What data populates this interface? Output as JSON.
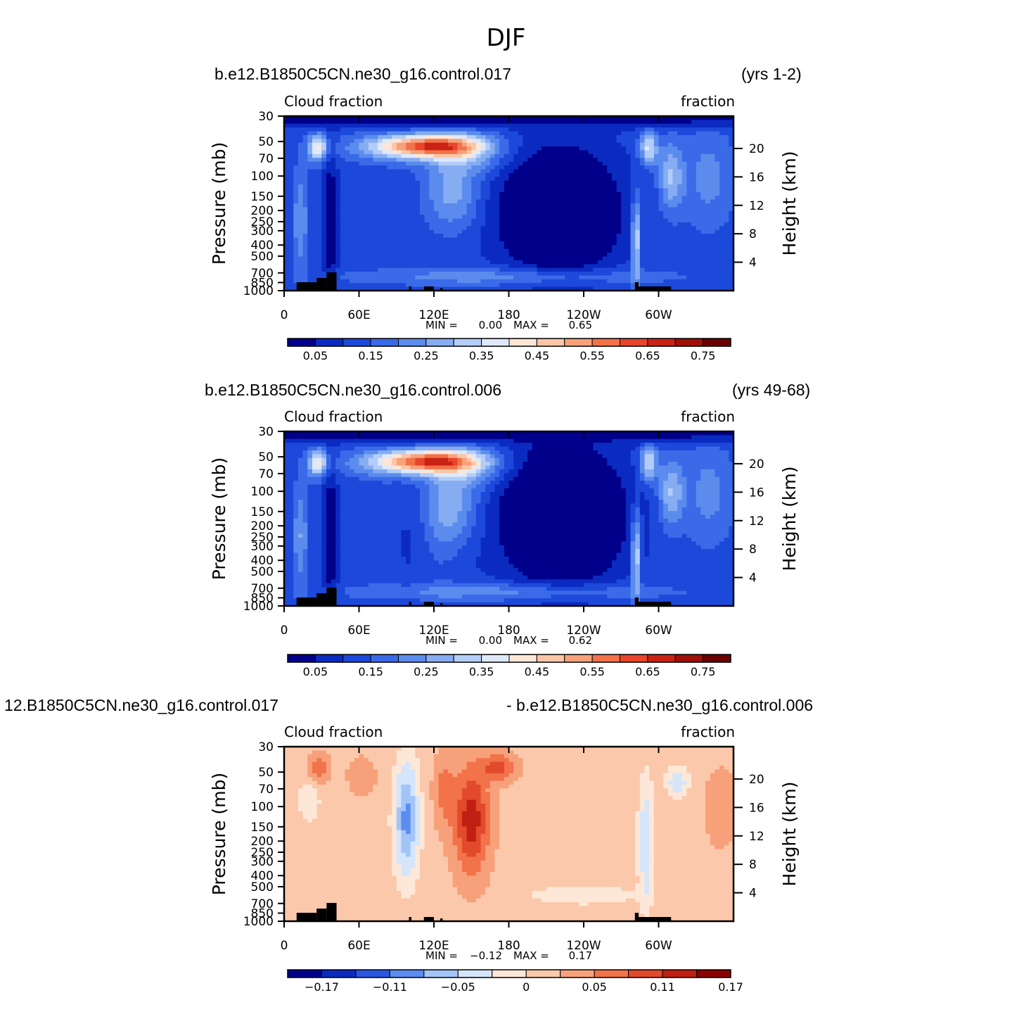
{
  "page": {
    "title": "DJF"
  },
  "palette": {
    "cloud": [
      "#00008b",
      "#0b2bc0",
      "#1d49da",
      "#3a6ae8",
      "#5b8ced",
      "#86acf2",
      "#b3cdf8",
      "#dde9fb",
      "#fde6d6",
      "#fbc6a6",
      "#f7a17b",
      "#f2724a",
      "#e8452a",
      "#c92315",
      "#a01008",
      "#6b0000"
    ],
    "diff": [
      "#00008b",
      "#0b2bc0",
      "#2a56e2",
      "#5c8cef",
      "#a3c4f6",
      "#d5e5fb",
      "#fde8d8",
      "#fbc8ab",
      "#f7a17b",
      "#f2724a",
      "#e14a2a",
      "#c02012",
      "#8b0000"
    ],
    "land": "#000000"
  },
  "chart_data": [
    {
      "type": "heatmap",
      "case": "b.e12.B1850C5CN.ne30_g16.control.017",
      "years": "(yrs 1-2)",
      "variable": "Cloud fraction",
      "units": "fraction",
      "xlabel": "",
      "ylabel_left": "Pressure (mb)",
      "ylabel_right": "Height (km)",
      "x_ticks": [
        "0",
        "60E",
        "120E",
        "180",
        "120W",
        "60W"
      ],
      "pressure_ticks": [
        "30",
        "50",
        "70",
        "100",
        "150",
        "200",
        "250",
        "300",
        "400",
        "500",
        "700",
        "850",
        "1000"
      ],
      "height_ticks": [
        "20",
        "16",
        "12",
        "8",
        "4"
      ],
      "stats": {
        "min_label": "MIN =",
        "min": "0.00",
        "max_label": "MAX =",
        "max": "0.65"
      },
      "colorbar_labels": [
        "0.05",
        "0.15",
        "0.25",
        "0.35",
        "0.45",
        "0.55",
        "0.65",
        "0.75"
      ]
    },
    {
      "type": "heatmap",
      "case": "b.e12.B1850C5CN.ne30_g16.control.006",
      "years": "(yrs 49-68)",
      "variable": "Cloud fraction",
      "units": "fraction",
      "xlabel": "",
      "ylabel_left": "Pressure (mb)",
      "ylabel_right": "Height (km)",
      "x_ticks": [
        "0",
        "60E",
        "120E",
        "180",
        "120W",
        "60W"
      ],
      "pressure_ticks": [
        "30",
        "50",
        "70",
        "100",
        "150",
        "200",
        "250",
        "300",
        "400",
        "500",
        "700",
        "850",
        "1000"
      ],
      "height_ticks": [
        "20",
        "16",
        "12",
        "8",
        "4"
      ],
      "stats": {
        "min_label": "MIN =",
        "min": "0.00",
        "max_label": "MAX =",
        "max": "0.62"
      },
      "colorbar_labels": [
        "0.05",
        "0.15",
        "0.25",
        "0.35",
        "0.45",
        "0.55",
        "0.65",
        "0.75"
      ]
    },
    {
      "type": "heatmap",
      "case_left": "12.B1850C5CN.ne30_g16.control.017",
      "case_right": "- b.e12.B1850C5CN.ne30_g16.control.006",
      "variable": "Cloud fraction",
      "units": "fraction",
      "xlabel": "",
      "ylabel_left": "Pressure (mb)",
      "ylabel_right": "Height (km)",
      "x_ticks": [
        "0",
        "60E",
        "120E",
        "180",
        "120W",
        "60W"
      ],
      "pressure_ticks": [
        "30",
        "50",
        "70",
        "100",
        "150",
        "200",
        "250",
        "300",
        "400",
        "500",
        "700",
        "850",
        "1000"
      ],
      "height_ticks": [
        "20",
        "16",
        "12",
        "8",
        "4"
      ],
      "stats": {
        "min_label": "MIN =",
        "min": "−0.12",
        "max_label": "MAX =",
        "max": "0.17"
      },
      "colorbar_labels": [
        "−0.17",
        "−0.11",
        "−0.05",
        "0",
        "0.05",
        "0.11",
        "0.17"
      ]
    }
  ]
}
